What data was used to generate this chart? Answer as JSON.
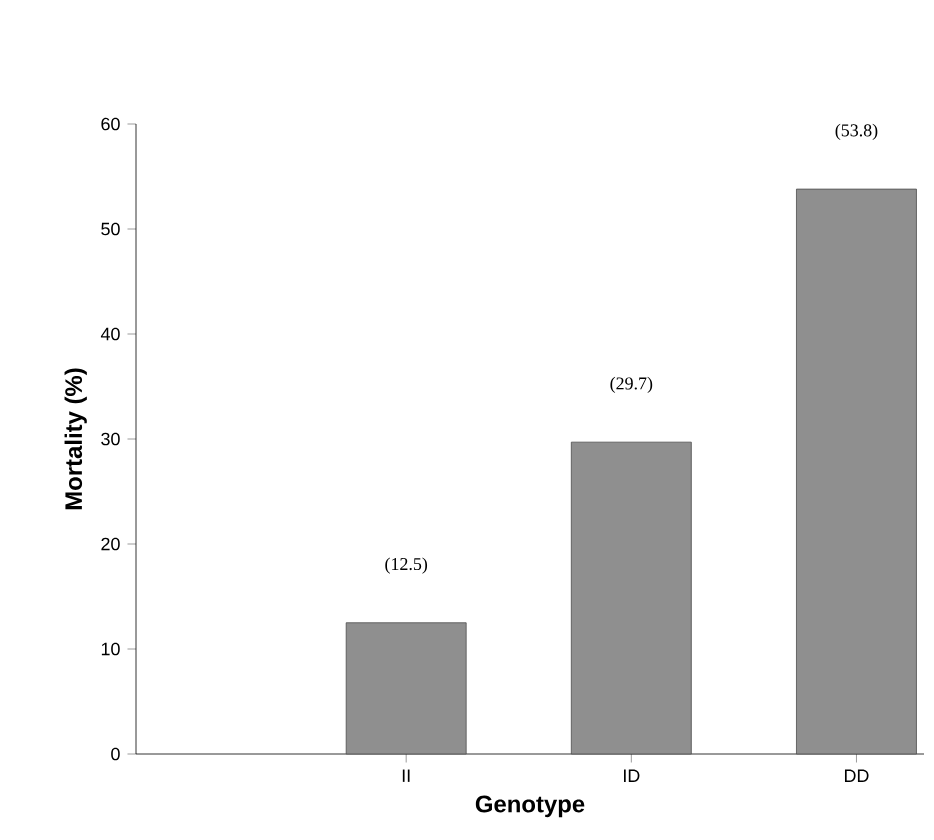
{
  "chart_data": {
    "type": "bar",
    "xlabel": "Genotype",
    "ylabel": "Mortality (%)",
    "categories": [
      "II",
      "ID",
      "DD"
    ],
    "values": [
      12.5,
      29.7,
      53.8
    ],
    "value_labels": [
      "(12.5)",
      "(29.7)",
      "(53.8)"
    ],
    "color": "#8f8f8f",
    "ylim": [
      0,
      60
    ],
    "yticks": [
      0,
      10,
      20,
      30,
      40,
      50,
      60
    ]
  }
}
